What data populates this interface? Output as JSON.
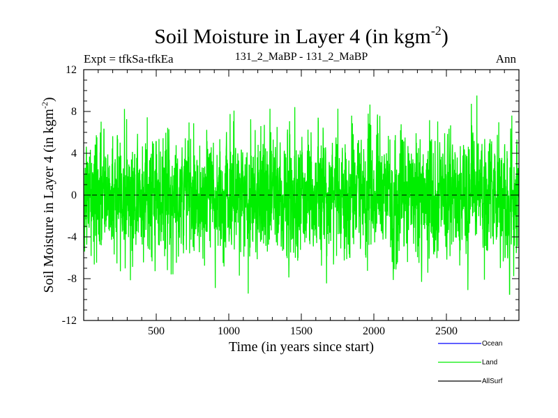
{
  "chart_data": {
    "type": "line",
    "title": "Soil Moisture in Layer 4 (in kgm",
    "title_sup": "-2",
    "title_close": ")",
    "subtitle_left": "Expt = tfkSa-tfkEa",
    "subtitle_center": "131_2_MaBP - 131_2_MaBP",
    "subtitle_right": "Ann",
    "xlabel": "Time (in years since start)",
    "ylabel": "Soil Moisture in Layer 4 (in kgm",
    "ylabel_sup": "-2",
    "ylabel_close": ")",
    "xlim": [
      0,
      3000
    ],
    "ylim": [
      -12,
      12
    ],
    "xticks": [
      500,
      1000,
      1500,
      2000,
      2500
    ],
    "xtick_labels": [
      "500",
      "1000",
      "1500",
      "2000",
      "2500"
    ],
    "yticks": [
      -12,
      -8,
      -4,
      0,
      4,
      8,
      12
    ],
    "ytick_labels": [
      "-12",
      "-8",
      "-4",
      "0",
      "4",
      "8",
      "12"
    ],
    "zero_line": 0,
    "series": [
      {
        "name": "Ocean",
        "color": "#0000ff",
        "values": []
      },
      {
        "name": "Land",
        "color": "#00ee00",
        "x_start": 1,
        "x_end": 3000,
        "n_points": 3000,
        "amplitude_std": 2.8,
        "min": -9.5,
        "max": 9.6
      },
      {
        "name": "AllSurf",
        "color": "#000000",
        "values": []
      }
    ]
  },
  "legend": [
    {
      "label": "Ocean",
      "color": "#0000ff"
    },
    {
      "label": "Land",
      "color": "#00ee00"
    },
    {
      "label": "AllSurf",
      "color": "#000000"
    }
  ]
}
